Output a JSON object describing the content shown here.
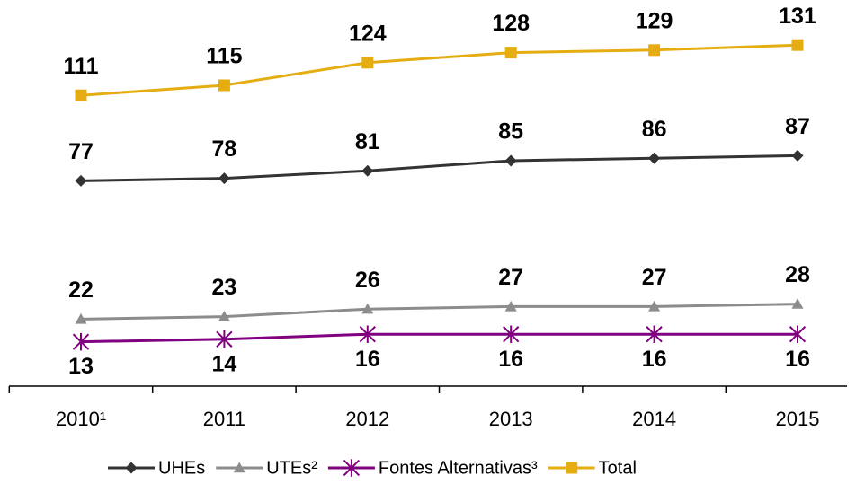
{
  "chart_data": {
    "type": "line",
    "categories": [
      "2010¹",
      "2011",
      "2012",
      "2013",
      "2014",
      "2015"
    ],
    "series": [
      {
        "name": "UHEs",
        "color": "#333333",
        "marker": "diamond",
        "label_position": "above",
        "values": [
          77,
          78,
          81,
          85,
          86,
          87
        ]
      },
      {
        "name": "UTEs²",
        "color": "#8c8c8c",
        "marker": "triangle",
        "label_position": "above",
        "values": [
          22,
          23,
          26,
          27,
          27,
          28
        ]
      },
      {
        "name": "Fontes Alternativas³",
        "color": "#800080",
        "marker": "star",
        "label_position": "below",
        "values": [
          13,
          14,
          16,
          16,
          16,
          16
        ]
      },
      {
        "name": "Total",
        "color": "#e6ad12",
        "marker": "square",
        "label_position": "above",
        "values": [
          111,
          115,
          124,
          128,
          129,
          131
        ]
      }
    ],
    "legend": "bottom"
  }
}
